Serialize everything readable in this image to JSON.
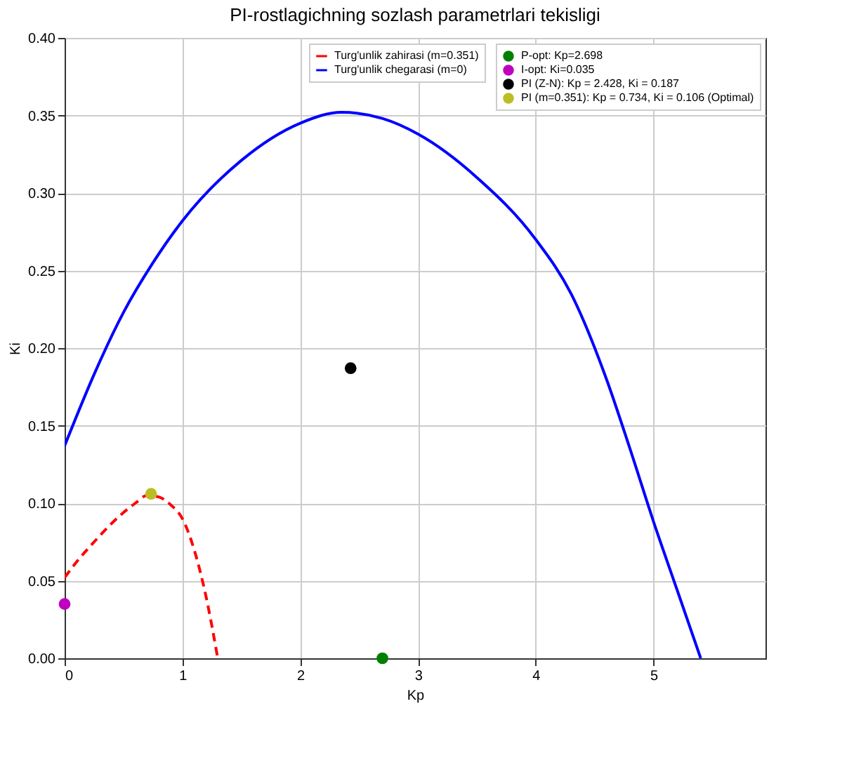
{
  "chart_data": {
    "type": "line",
    "title": "PI-rostlagichning sozlash parametrlari tekisligi",
    "xlabel": "Kp",
    "ylabel": "Ki",
    "xlim": [
      0,
      5.95
    ],
    "ylim": [
      0,
      0.4
    ],
    "xticks": [
      0,
      1,
      2,
      3,
      4,
      5
    ],
    "yticks": [
      {
        "value": 0,
        "label": "0.00"
      },
      0.05,
      {
        "value": 0.1,
        "label": "0.10"
      },
      0.15,
      {
        "value": 0.2,
        "label": "0.20"
      },
      0.25,
      {
        "value": 0.3,
        "label": "0.30"
      },
      0.35,
      {
        "value": 0.4,
        "label": "0.40"
      }
    ],
    "grid": true,
    "legend": "top right",
    "series": [
      {
        "type": "line",
        "name": "Turg'unlik zahirasi (m=0.351)",
        "color": "#ff0000",
        "line_style": "dashed",
        "marker": "none",
        "x": [
          0,
          0.1,
          0.25,
          0.4,
          0.5,
          0.6,
          0.7,
          0.8,
          0.9,
          1.0,
          1.1,
          1.2,
          1.3
        ],
        "values": [
          0.052,
          0.062,
          0.075,
          0.087,
          0.094,
          0.1,
          0.105,
          0.104,
          0.099,
          0.09,
          0.07,
          0.04,
          0.0
        ]
      },
      {
        "type": "line",
        "name": "Turg'unlik chegarasi (m=0)",
        "color": "#0000ff",
        "line_style": "solid",
        "marker": "none",
        "x": [
          0,
          0.25,
          0.5,
          0.75,
          1.0,
          1.5,
          2.0,
          2.35,
          2.7,
          3.0,
          3.5,
          4.0,
          4.3,
          4.6,
          4.8,
          5.0,
          5.2,
          5.4
        ],
        "values": [
          0.137,
          0.183,
          0.223,
          0.255,
          0.282,
          0.321,
          0.345,
          0.352,
          0.348,
          0.338,
          0.31,
          0.27,
          0.235,
          0.18,
          0.135,
          0.088,
          0.044,
          0.0
        ]
      },
      {
        "type": "scatter",
        "name": "P-opt: Kp=2.698",
        "color": "#008000",
        "marker": "circle",
        "x": [
          2.698
        ],
        "values": [
          0.0
        ]
      },
      {
        "type": "scatter",
        "name": "I-opt: Ki=0.035",
        "color": "#bf00bf",
        "marker": "circle",
        "x": [
          0
        ],
        "values": [
          0.035
        ]
      },
      {
        "type": "scatter",
        "name": "PI (Z-N): Kp = 2.428, Ki = 0.187",
        "color": "#000000",
        "marker": "circle",
        "x": [
          2.428
        ],
        "values": [
          0.187
        ]
      },
      {
        "type": "scatter",
        "name": "PI (m=0.351): Kp = 0.734, Ki = 0.106 (Optimal)",
        "color": "#bcbd22",
        "marker": "circle",
        "x": [
          0.734
        ],
        "values": [
          0.106
        ]
      }
    ]
  }
}
